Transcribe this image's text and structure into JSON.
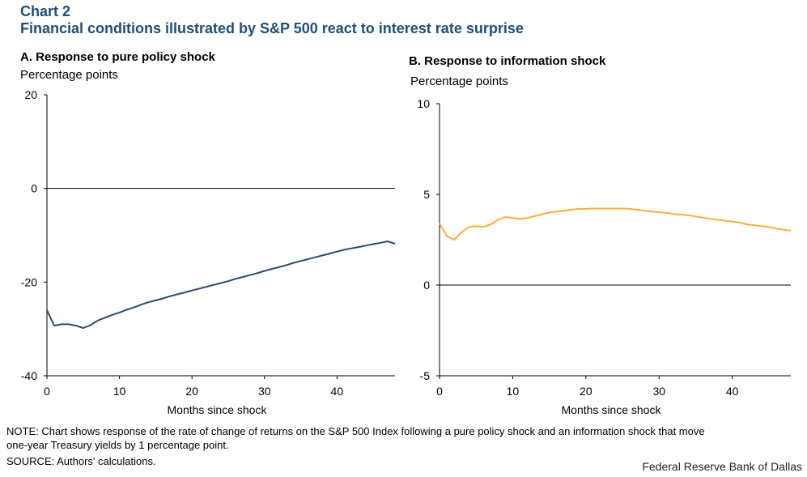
{
  "header": {
    "label": "Chart 2",
    "title": "Financial conditions illustrated by S&P 500 react to interest rate surprise"
  },
  "notes": {
    "note_line1": "NOTE: Chart shows response of the rate of change of returns on the S&P 500 Index following a pure policy shock and an information shock that move",
    "note_line2": "one-year Treasury yields by 1 percentage point.",
    "source": "SOURCE: Authors' calculations.",
    "credit": "Federal Reserve Bank of Dallas"
  },
  "chart_data": [
    {
      "type": "line",
      "title": "A. Response to pure policy shock",
      "ylabel": "Percentage points",
      "xlabel": "Months since shock",
      "xlim": [
        0,
        48
      ],
      "ylim": [
        -40,
        20
      ],
      "xticks": [
        0,
        10,
        20,
        30,
        40
      ],
      "yticks": [
        -40,
        -20,
        0,
        20
      ],
      "color": "#2e4a6b",
      "series": [
        {
          "x": [
            0,
            1,
            2,
            3,
            4,
            5,
            6,
            7,
            8,
            9,
            10,
            11,
            12,
            13,
            14,
            15,
            16,
            17,
            18,
            19,
            20,
            21,
            22,
            23,
            24,
            25,
            26,
            27,
            28,
            29,
            30,
            31,
            32,
            33,
            34,
            35,
            36,
            37,
            38,
            39,
            40,
            41,
            42,
            43,
            44,
            45,
            46,
            47,
            48
          ],
          "values": [
            -26,
            -29.3,
            -29,
            -29,
            -29.3,
            -29.8,
            -29.2,
            -28.2,
            -27.6,
            -27,
            -26.5,
            -25.9,
            -25.4,
            -24.8,
            -24.3,
            -23.9,
            -23.5,
            -23,
            -22.6,
            -22.2,
            -21.8,
            -21.4,
            -21,
            -20.6,
            -20.2,
            -19.8,
            -19.3,
            -18.9,
            -18.5,
            -18.1,
            -17.6,
            -17.2,
            -16.8,
            -16.4,
            -15.9,
            -15.5,
            -15.1,
            -14.7,
            -14.3,
            -13.9,
            -13.5,
            -13.1,
            -12.8,
            -12.5,
            -12.2,
            -11.9,
            -11.6,
            -11.3,
            -11.8
          ]
        }
      ]
    },
    {
      "type": "line",
      "title": "B. Response to information shock",
      "ylabel": "Percentage points",
      "xlabel": "Months since shock",
      "xlim": [
        0,
        48
      ],
      "ylim": [
        -5,
        10
      ],
      "xticks": [
        0,
        10,
        20,
        30,
        40
      ],
      "yticks": [
        -5,
        0,
        5,
        10
      ],
      "color": "#f5b03f",
      "series": [
        {
          "x": [
            0,
            1,
            2,
            3,
            4,
            5,
            6,
            7,
            8,
            9,
            10,
            11,
            12,
            13,
            14,
            15,
            16,
            17,
            18,
            19,
            20,
            21,
            22,
            23,
            24,
            25,
            26,
            27,
            28,
            29,
            30,
            31,
            32,
            33,
            34,
            35,
            36,
            37,
            38,
            39,
            40,
            41,
            42,
            43,
            44,
            45,
            46,
            47,
            48
          ],
          "values": [
            3.4,
            2.7,
            2.5,
            2.9,
            3.2,
            3.25,
            3.2,
            3.35,
            3.6,
            3.75,
            3.7,
            3.65,
            3.7,
            3.8,
            3.9,
            4.0,
            4.05,
            4.1,
            4.15,
            4.2,
            4.2,
            4.22,
            4.22,
            4.22,
            4.22,
            4.22,
            4.2,
            4.15,
            4.1,
            4.05,
            4.02,
            3.98,
            3.92,
            3.88,
            3.85,
            3.78,
            3.72,
            3.65,
            3.6,
            3.55,
            3.5,
            3.45,
            3.35,
            3.3,
            3.25,
            3.2,
            3.12,
            3.05,
            3.0
          ]
        }
      ]
    }
  ]
}
